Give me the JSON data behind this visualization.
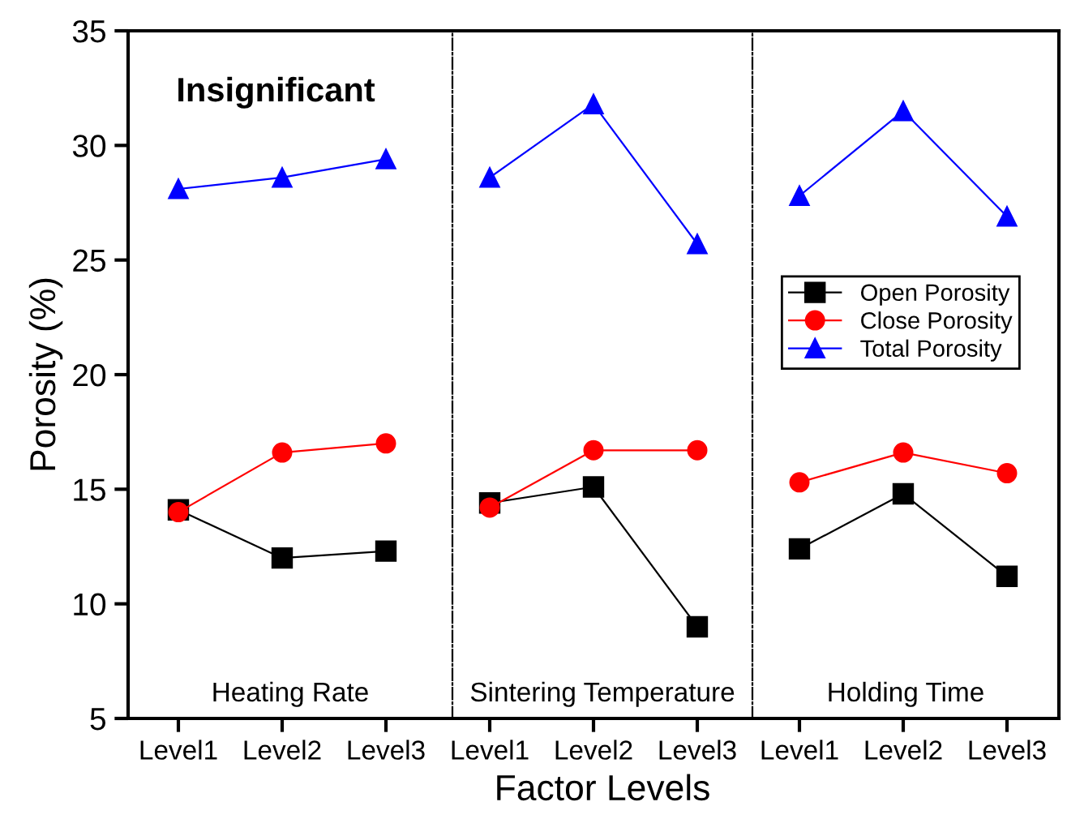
{
  "chart_data": [
    {
      "type": "line",
      "ylabel": "Porosity (%)",
      "categories": [
        "Level1",
        "Level2",
        "Level3"
      ],
      "series": [
        {
          "color": "#000000",
          "marker": "square",
          "values": [
            14.1,
            12.0,
            12.3
          ]
        },
        {
          "color": "#ff0000",
          "marker": "circle",
          "values": [
            14.0,
            16.6,
            17.0
          ]
        },
        {
          "color": "#0000ff",
          "marker": "triangle",
          "values": [
            28.1,
            28.6,
            29.4
          ]
        }
      ],
      "ylim": [
        5,
        35
      ],
      "yticks": [
        5,
        10,
        15,
        20,
        25,
        30,
        35
      ],
      "annotations": [
        "Heating Rate",
        "Insignificant"
      ],
      "grid": false,
      "line_style": "solid"
    },
    {
      "type": "line",
      "xlabel": "Factor Levels",
      "categories": [
        "Level1",
        "Level2",
        "Level3"
      ],
      "series": [
        {
          "color": "#000000",
          "marker": "square",
          "values": [
            14.4,
            15.1,
            9.0
          ]
        },
        {
          "color": "#ff0000",
          "marker": "circle",
          "values": [
            14.2,
            16.7,
            16.7
          ]
        },
        {
          "color": "#0000ff",
          "marker": "triangle",
          "values": [
            28.6,
            31.8,
            25.7
          ]
        }
      ],
      "ylim": [
        5,
        35
      ],
      "tick_labels": "x",
      "annotations": [
        "Sintering Temperature"
      ],
      "grid": false,
      "line_style": "solid"
    },
    {
      "type": "line",
      "categories": [
        "Level1",
        "Level2",
        "Level3"
      ],
      "series": [
        {
          "name": "Open Porosity",
          "color": "#000000",
          "marker": "square",
          "values": [
            12.4,
            14.8,
            11.2
          ]
        },
        {
          "name": "Close Porosity",
          "color": "#ff0000",
          "marker": "circle",
          "values": [
            15.3,
            16.6,
            15.7
          ]
        },
        {
          "name": "Total Porosity",
          "color": "#0000ff",
          "marker": "triangle",
          "values": [
            27.8,
            31.5,
            26.9
          ]
        }
      ],
      "ylim": [
        5,
        35
      ],
      "tick_labels": "x",
      "annotations": [
        "Holding Time"
      ],
      "grid": false,
      "legend": "right",
      "line_style": "solid"
    }
  ]
}
